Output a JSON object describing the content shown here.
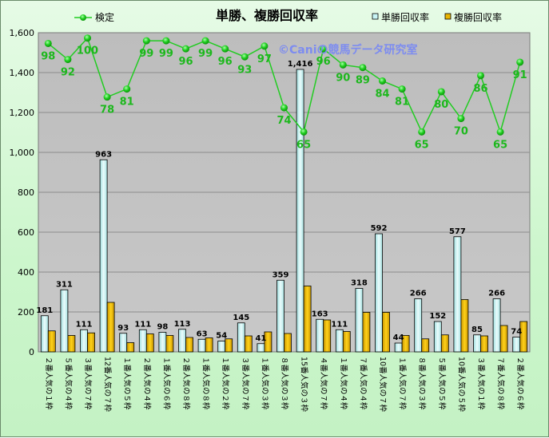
{
  "chart_data": {
    "type": "bar",
    "title": "単勝、複勝回収率",
    "watermark": "©Caniの競馬データ研究室",
    "categories": [
      "２番人気の１枠",
      "５番人気の４枠",
      "３番人気の７枠",
      "12番人気の７枠",
      "１番人気の５枠",
      "２番人気の４枠",
      "１番人気の６枠",
      "２番人気の８枠",
      "１番人気の８枠",
      "１番人気の２枠",
      "３番人気の７枠",
      "１番人気の３枠",
      "８番人気の３枠",
      "15番人気の３枠",
      "４番人気の７枠",
      "１番人気の４枠",
      "７番人気の４枠",
      "10番人気の７枠",
      "１番人気の７枠",
      "８番人気の３枠",
      "５番人気の５枠",
      "10番人気の５枠",
      "３番人気の１枠",
      "７番人気の８枠",
      "２番人気の６枠"
    ],
    "series": [
      {
        "name": "単勝回収率",
        "kind": "bar",
        "color": "#c8f5f5",
        "values": [
          181,
          311,
          111,
          963,
          93,
          111,
          98,
          113,
          63,
          54,
          145,
          41,
          359,
          1416,
          163,
          111,
          318,
          592,
          44,
          266,
          152,
          577,
          85,
          266,
          74
        ]
      },
      {
        "name": "複勝回収率",
        "kind": "bar",
        "color": "#e8b400",
        "values": [
          105,
          82,
          95,
          248,
          46,
          90,
          82,
          72,
          70,
          65,
          80,
          100,
          92,
          330,
          160,
          102,
          198,
          198,
          82,
          65,
          85,
          262,
          80,
          132,
          152
        ]
      },
      {
        "name": "検定",
        "kind": "line",
        "color": "#22cc22",
        "values": [
          98,
          92,
          100,
          78,
          81,
          99,
          99,
          96,
          99,
          96,
          93,
          97,
          74,
          65,
          96,
          90,
          89,
          84,
          81,
          65,
          80,
          70,
          86,
          65,
          91
        ]
      }
    ],
    "ylim": [
      0,
      1600
    ],
    "yticks": [
      0,
      200,
      400,
      600,
      800,
      1000,
      1200,
      1400,
      1600
    ],
    "line_scale": [
      -17,
      102
    ],
    "legend_position": "top",
    "grid": true
  }
}
